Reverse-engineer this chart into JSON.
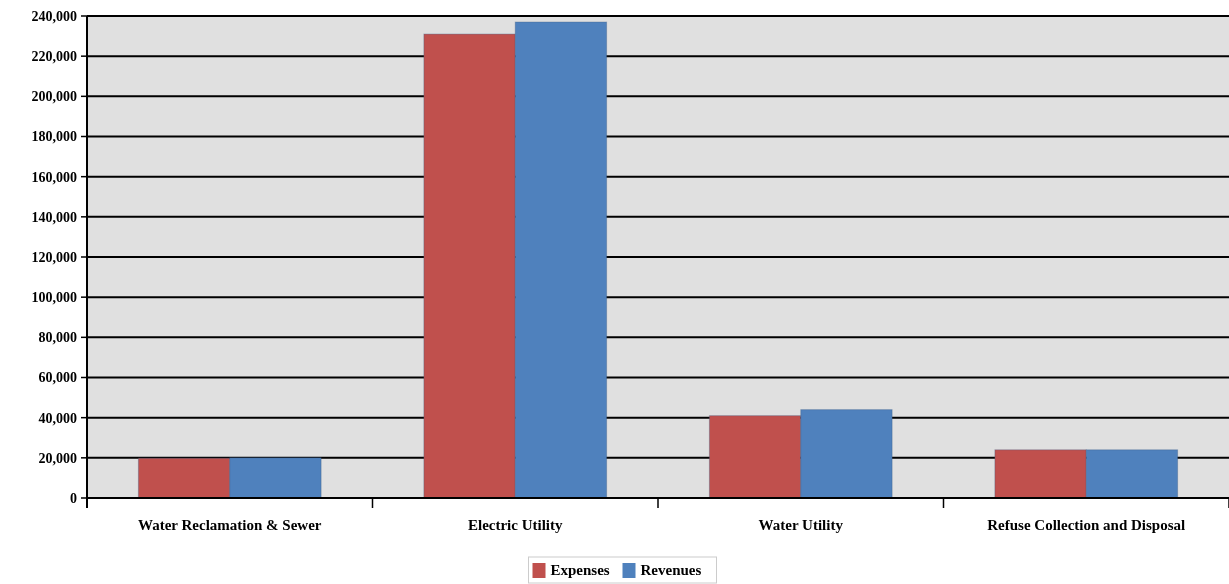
{
  "chart_data": {
    "type": "bar",
    "categories": [
      "Water Reclamation & Sewer",
      "Electric Utility",
      "Water Utility",
      "Refuse Collection and Disposal"
    ],
    "series": [
      {
        "name": "Expenses",
        "color": "#c0504d",
        "values": [
          19800,
          231000,
          41000,
          24000
        ]
      },
      {
        "name": "Revenues",
        "color": "#4f81bd",
        "values": [
          20000,
          237000,
          44000,
          24000
        ]
      }
    ],
    "ylim": [
      0,
      240000
    ],
    "yticks": [
      {
        "value": 0,
        "label": "0"
      },
      {
        "value": 20000,
        "label": "20,000"
      },
      {
        "value": 40000,
        "label": "40,000"
      },
      {
        "value": 60000,
        "label": "60,000"
      },
      {
        "value": 80000,
        "label": "80,000"
      },
      {
        "value": 100000,
        "label": "100,000"
      },
      {
        "value": 120000,
        "label": "120,000"
      },
      {
        "value": 140000,
        "label": "140,000"
      },
      {
        "value": 160000,
        "label": "160,000"
      },
      {
        "value": 180000,
        "label": "180,000"
      },
      {
        "value": 200000,
        "label": "200,000"
      },
      {
        "value": 220000,
        "label": "220,000"
      },
      {
        "value": 240000,
        "label": "240,000"
      }
    ],
    "grid": "y",
    "legend": "bottom"
  }
}
